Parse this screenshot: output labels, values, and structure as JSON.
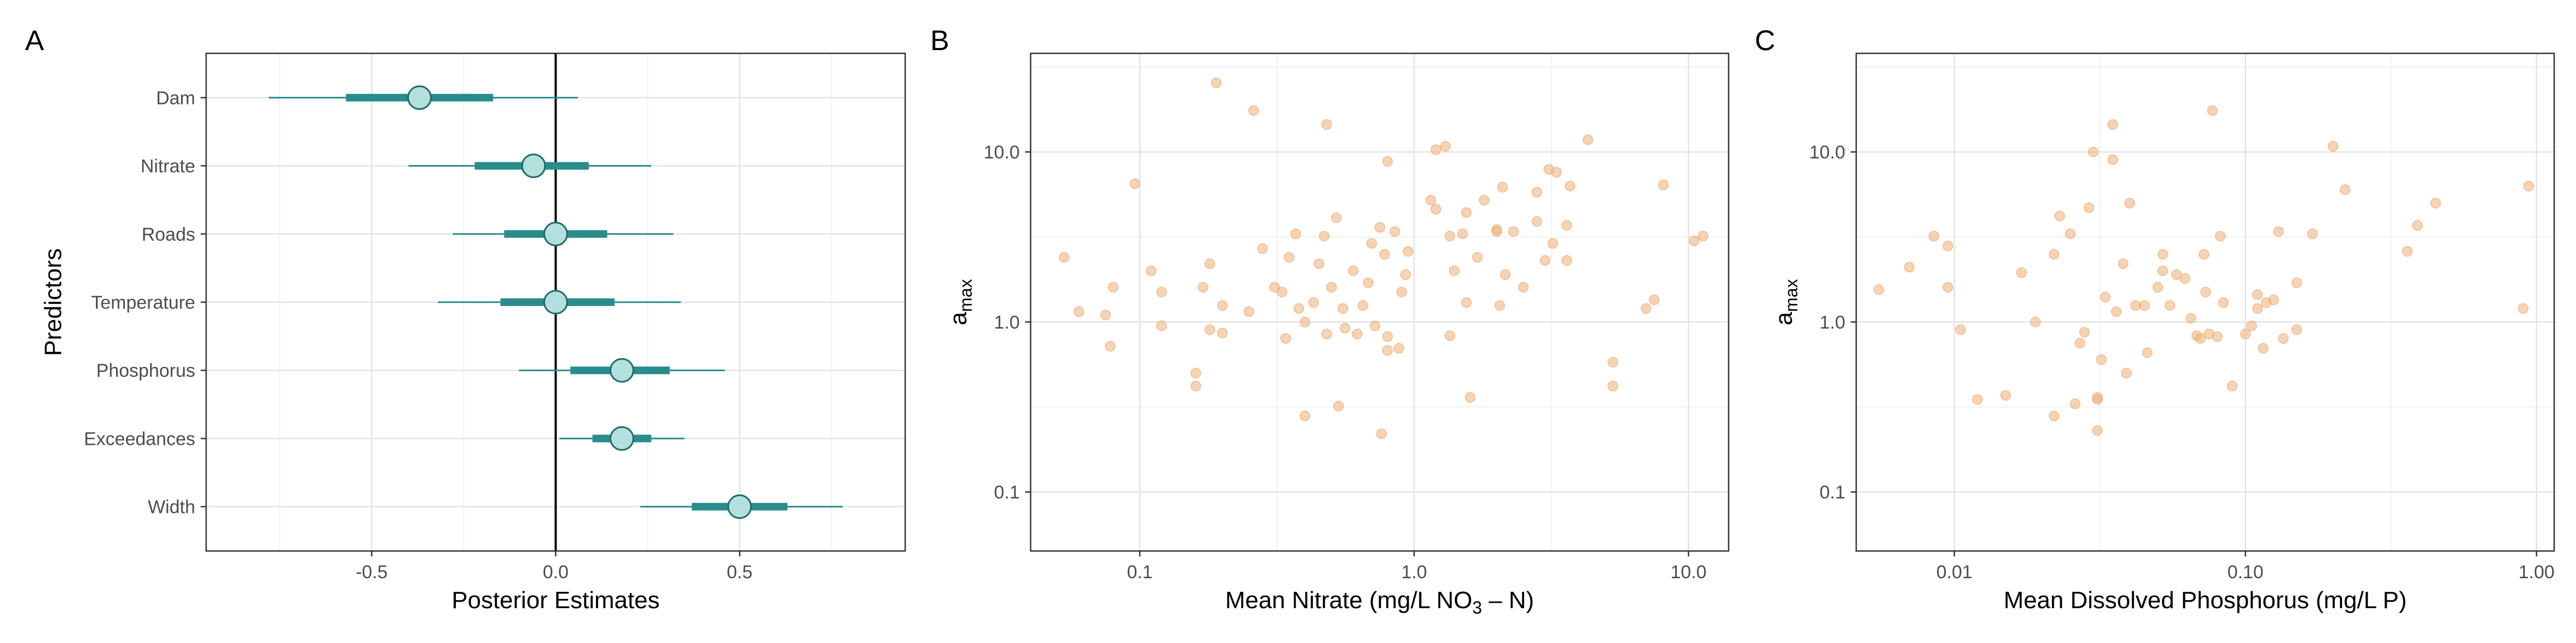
{
  "chart_data": [
    {
      "panel": "A",
      "type": "interval",
      "xlabel": "Posterior Estimates",
      "ylabel": "Predictors",
      "xlim": [
        -0.95,
        0.95
      ],
      "x_ticks": [
        -0.5,
        0.0,
        0.5
      ],
      "x_tick_labels": [
        "-0.5",
        "0.0",
        "0.5"
      ],
      "grid": true,
      "reference_line_x": 0,
      "colors": {
        "interval": "#2a8c8c",
        "point_fill": "#b3e0dc",
        "point_stroke": "#1d6b6b"
      },
      "rows": [
        {
          "name": "Dam",
          "median": -0.37,
          "inner": [
            -0.57,
            -0.17
          ],
          "outer": [
            -0.78,
            0.06
          ]
        },
        {
          "name": "Nitrate",
          "median": -0.06,
          "inner": [
            -0.22,
            0.09
          ],
          "outer": [
            -0.4,
            0.26
          ]
        },
        {
          "name": "Roads",
          "median": 0.0,
          "inner": [
            -0.14,
            0.14
          ],
          "outer": [
            -0.28,
            0.32
          ]
        },
        {
          "name": "Temperature",
          "median": 0.0,
          "inner": [
            -0.15,
            0.16
          ],
          "outer": [
            -0.32,
            0.34
          ]
        },
        {
          "name": "Phosphorus",
          "median": 0.18,
          "inner": [
            0.04,
            0.31
          ],
          "outer": [
            -0.1,
            0.46
          ]
        },
        {
          "name": "Exceedances",
          "median": 0.18,
          "inner": [
            0.1,
            0.26
          ],
          "outer": [
            0.01,
            0.35
          ]
        },
        {
          "name": "Width",
          "median": 0.5,
          "inner": [
            0.37,
            0.63
          ],
          "outer": [
            0.23,
            0.78
          ]
        }
      ]
    },
    {
      "panel": "B",
      "type": "scatter",
      "xlabel": "Mean Nitrate (mg/L NO",
      "xlabel_sub": "3",
      "xlabel_tail": " – N)",
      "ylabel": "a",
      "ylabel_sub": "max",
      "x_scale": "log10",
      "y_scale": "log10",
      "xlim": [
        0.04,
        14
      ],
      "ylim": [
        0.045,
        38
      ],
      "x_ticks": [
        0.1,
        1.0,
        10.0
      ],
      "x_tick_labels": [
        "0.1",
        "1.0",
        "10.0"
      ],
      "y_ticks": [
        0.1,
        1.0,
        10.0
      ],
      "y_tick_labels": [
        "0.1",
        "1.0",
        "10.0"
      ],
      "grid": true,
      "point_color": "#f0b57e",
      "points": [
        [
          0.19,
          25.5
        ],
        [
          0.26,
          17.5
        ],
        [
          0.48,
          14.5
        ],
        [
          0.096,
          6.5
        ],
        [
          0.053,
          2.4
        ],
        [
          0.06,
          1.15
        ],
        [
          0.075,
          1.1
        ],
        [
          0.078,
          0.72
        ],
        [
          0.08,
          1.6
        ],
        [
          0.11,
          2.0
        ],
        [
          0.12,
          1.5
        ],
        [
          0.12,
          0.95
        ],
        [
          0.16,
          0.5
        ],
        [
          0.16,
          0.42
        ],
        [
          0.17,
          1.6
        ],
        [
          0.18,
          2.2
        ],
        [
          0.18,
          0.9
        ],
        [
          0.2,
          1.25
        ],
        [
          0.2,
          0.86
        ],
        [
          0.25,
          1.15
        ],
        [
          0.28,
          2.7
        ],
        [
          0.31,
          1.6
        ],
        [
          0.33,
          1.5
        ],
        [
          0.34,
          0.8
        ],
        [
          0.35,
          2.4
        ],
        [
          0.37,
          3.3
        ],
        [
          0.38,
          1.2
        ],
        [
          0.4,
          1.0
        ],
        [
          0.4,
          0.28
        ],
        [
          0.43,
          1.3
        ],
        [
          0.45,
          2.2
        ],
        [
          0.47,
          3.2
        ],
        [
          0.48,
          0.85
        ],
        [
          0.5,
          1.6
        ],
        [
          0.52,
          4.1
        ],
        [
          0.53,
          0.32
        ],
        [
          0.55,
          1.2
        ],
        [
          0.56,
          0.92
        ],
        [
          0.6,
          2.0
        ],
        [
          0.62,
          0.85
        ],
        [
          0.65,
          1.25
        ],
        [
          0.68,
          1.7
        ],
        [
          0.7,
          2.9
        ],
        [
          0.72,
          0.95
        ],
        [
          0.75,
          3.6
        ],
        [
          0.78,
          2.5
        ],
        [
          0.8,
          0.82
        ],
        [
          0.8,
          0.68
        ],
        [
          0.85,
          3.4
        ],
        [
          0.88,
          0.7
        ],
        [
          0.9,
          1.5
        ],
        [
          0.93,
          1.9
        ],
        [
          0.95,
          2.6
        ],
        [
          0.76,
          0.22
        ],
        [
          0.8,
          8.8
        ],
        [
          1.15,
          5.2
        ],
        [
          1.2,
          4.6
        ],
        [
          1.2,
          10.3
        ],
        [
          1.3,
          10.8
        ],
        [
          1.35,
          3.2
        ],
        [
          1.35,
          0.83
        ],
        [
          1.4,
          2.0
        ],
        [
          1.5,
          3.3
        ],
        [
          1.55,
          4.4
        ],
        [
          1.55,
          1.3
        ],
        [
          1.6,
          0.36
        ],
        [
          1.7,
          2.4
        ],
        [
          1.8,
          5.2
        ],
        [
          2.0,
          3.5
        ],
        [
          2.0,
          3.4
        ],
        [
          2.05,
          1.25
        ],
        [
          2.1,
          6.2
        ],
        [
          2.15,
          1.9
        ],
        [
          2.3,
          3.4
        ],
        [
          2.5,
          1.6
        ],
        [
          2.8,
          5.8
        ],
        [
          2.8,
          3.9
        ],
        [
          3.0,
          2.3
        ],
        [
          3.1,
          7.9
        ],
        [
          3.3,
          7.6
        ],
        [
          3.2,
          2.9
        ],
        [
          3.6,
          3.7
        ],
        [
          3.6,
          2.3
        ],
        [
          3.7,
          6.3
        ],
        [
          4.3,
          11.8
        ],
        [
          5.3,
          0.58
        ],
        [
          5.3,
          0.42
        ],
        [
          7.0,
          1.2
        ],
        [
          7.5,
          1.35
        ],
        [
          8.1,
          6.4
        ],
        [
          10.5,
          3.0
        ],
        [
          11.3,
          3.2
        ]
      ]
    },
    {
      "panel": "C",
      "type": "scatter",
      "xlabel": "Mean Dissolved Phosphorus (mg/L P)",
      "ylabel": "a",
      "ylabel_sub": "max",
      "x_scale": "log10",
      "y_scale": "log10",
      "xlim": [
        0.0046,
        1.15
      ],
      "ylim": [
        0.045,
        38
      ],
      "x_ticks": [
        0.01,
        0.1,
        1.0
      ],
      "x_tick_labels": [
        "0.01",
        "0.10",
        "1.00"
      ],
      "y_ticks": [
        0.1,
        1.0,
        10.0
      ],
      "y_tick_labels": [
        "0.1",
        "1.0",
        "10.0"
      ],
      "grid": true,
      "point_color": "#f0b57e",
      "points": [
        [
          0.0055,
          1.55
        ],
        [
          0.007,
          2.1
        ],
        [
          0.0085,
          3.2
        ],
        [
          0.0095,
          2.8
        ],
        [
          0.0095,
          1.6
        ],
        [
          0.0105,
          0.9
        ],
        [
          0.012,
          0.35
        ],
        [
          0.015,
          0.37
        ],
        [
          0.017,
          1.95
        ],
        [
          0.019,
          1.0
        ],
        [
          0.022,
          2.5
        ],
        [
          0.022,
          0.28
        ],
        [
          0.023,
          4.2
        ],
        [
          0.025,
          3.3
        ],
        [
          0.026,
          0.33
        ],
        [
          0.027,
          0.75
        ],
        [
          0.028,
          0.87
        ],
        [
          0.029,
          4.7
        ],
        [
          0.03,
          10.0
        ],
        [
          0.031,
          0.36
        ],
        [
          0.031,
          0.35
        ],
        [
          0.031,
          0.23
        ],
        [
          0.032,
          0.6
        ],
        [
          0.033,
          1.4
        ],
        [
          0.035,
          14.5
        ],
        [
          0.035,
          9.0
        ],
        [
          0.036,
          1.15
        ],
        [
          0.038,
          2.2
        ],
        [
          0.039,
          0.5
        ],
        [
          0.04,
          5.0
        ],
        [
          0.042,
          1.25
        ],
        [
          0.045,
          1.25
        ],
        [
          0.046,
          0.66
        ],
        [
          0.05,
          1.6
        ],
        [
          0.052,
          2.5
        ],
        [
          0.052,
          2.0
        ],
        [
          0.055,
          1.25
        ],
        [
          0.058,
          1.9
        ],
        [
          0.062,
          1.8
        ],
        [
          0.065,
          1.05
        ],
        [
          0.068,
          0.83
        ],
        [
          0.07,
          0.8
        ],
        [
          0.072,
          2.5
        ],
        [
          0.073,
          1.5
        ],
        [
          0.075,
          0.85
        ],
        [
          0.077,
          17.5
        ],
        [
          0.08,
          0.82
        ],
        [
          0.082,
          3.2
        ],
        [
          0.084,
          1.3
        ],
        [
          0.09,
          0.42
        ],
        [
          0.1,
          0.85
        ],
        [
          0.105,
          0.95
        ],
        [
          0.11,
          1.45
        ],
        [
          0.11,
          1.2
        ],
        [
          0.115,
          0.7
        ],
        [
          0.118,
          1.3
        ],
        [
          0.125,
          1.35
        ],
        [
          0.13,
          3.4
        ],
        [
          0.135,
          0.8
        ],
        [
          0.15,
          0.9
        ],
        [
          0.15,
          1.7
        ],
        [
          0.17,
          3.3
        ],
        [
          0.2,
          10.8
        ],
        [
          0.22,
          6.0
        ],
        [
          0.36,
          2.6
        ],
        [
          0.39,
          3.7
        ],
        [
          0.45,
          5.0
        ],
        [
          0.9,
          1.2
        ],
        [
          0.94,
          6.3
        ]
      ]
    }
  ]
}
